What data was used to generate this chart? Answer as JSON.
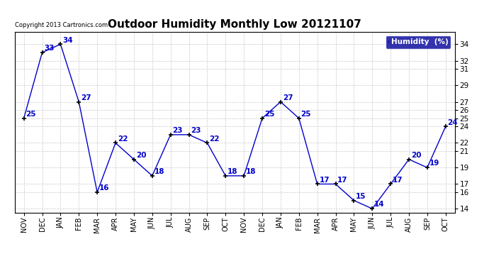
{
  "title": "Outdoor Humidity Monthly Low 20121107",
  "months": [
    "NOV",
    "DEC",
    "JAN",
    "FEB",
    "MAR",
    "APR",
    "MAY",
    "JUN",
    "JUL",
    "AUG",
    "SEP",
    "OCT",
    "NOV",
    "DEC",
    "JAN",
    "FEB",
    "MAR",
    "APR",
    "MAY",
    "JUN",
    "JUL",
    "AUG",
    "SEP",
    "OCT"
  ],
  "values": [
    25,
    33,
    34,
    27,
    16,
    22,
    20,
    18,
    23,
    23,
    22,
    18,
    18,
    25,
    27,
    25,
    17,
    17,
    15,
    14,
    17,
    20,
    19,
    24
  ],
  "ylim": [
    13.5,
    35.5
  ],
  "yticks": [
    14,
    16,
    17,
    19,
    21,
    22,
    24,
    25,
    26,
    27,
    29,
    31,
    32,
    34
  ],
  "line_color": "#0000cc",
  "marker_color": "#000000",
  "bg_color": "#ffffff",
  "grid_color": "#bbbbbb",
  "copyright_text": "Copyright 2013 Cartronics.com",
  "legend_label": "Humidity  (%)",
  "legend_bg": "#000099",
  "legend_text_color": "#ffffff",
  "label_color": "#0000cc",
  "title_fontsize": 11,
  "label_fontsize": 7.5
}
